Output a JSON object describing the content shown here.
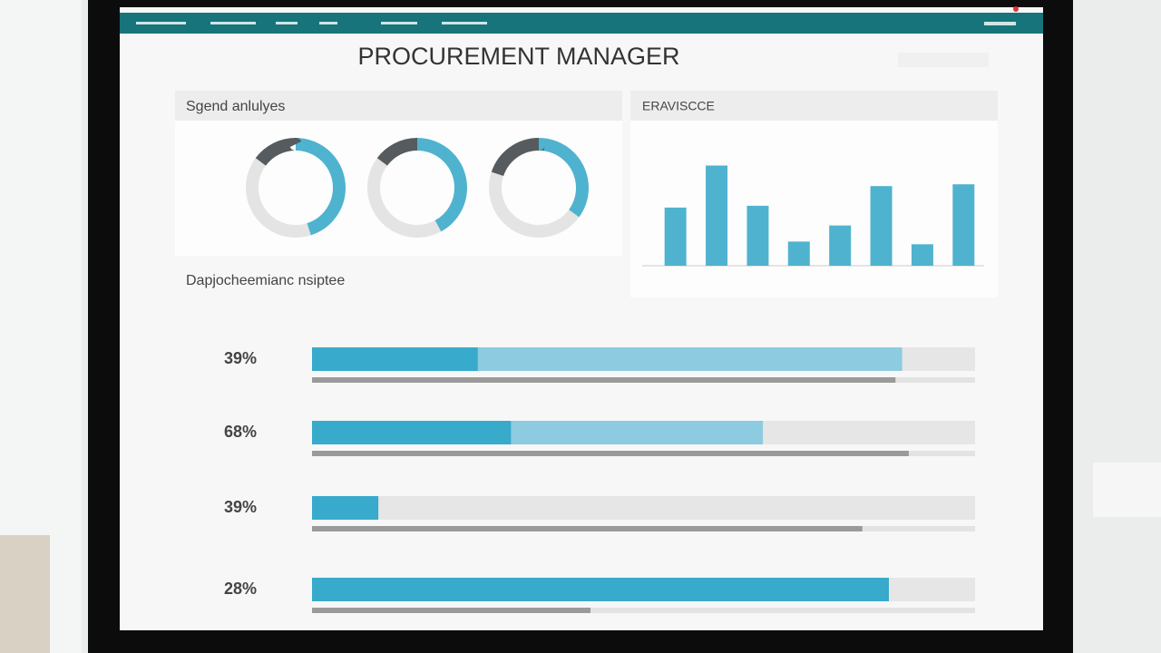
{
  "header": {
    "title": "PROCUREMENT MANAGER"
  },
  "spend_panel": {
    "title": "Sgend anlulyes",
    "segment_colors": [
      "#4fb3cf",
      "#e4e4e4",
      "#555b5e"
    ],
    "donuts": [
      {
        "segments": [
          45,
          40,
          15
        ]
      },
      {
        "segments": [
          42,
          43,
          15
        ]
      },
      {
        "segments": [
          35,
          45,
          20
        ]
      }
    ]
  },
  "bar_panel": {
    "title": "ERAVISCCE",
    "color": "#4fb3cf",
    "ylim": [
      0,
      150
    ],
    "values": [
      65,
      112,
      67,
      27,
      45,
      89,
      24,
      91
    ]
  },
  "progress_panel": {
    "title": "Dapjocheemianc nsiptee",
    "colors": [
      "#38aacb",
      "#8ccbe0",
      "#9a9a9a"
    ],
    "rows": [
      {
        "label": "39%",
        "values": [
          25,
          89,
          88
        ]
      },
      {
        "label": "68%",
        "values": [
          30,
          68,
          90
        ]
      },
      {
        "label": "39%",
        "values": [
          10,
          10,
          83
        ]
      },
      {
        "label": "28%",
        "values": [
          87,
          87,
          42
        ]
      }
    ]
  }
}
